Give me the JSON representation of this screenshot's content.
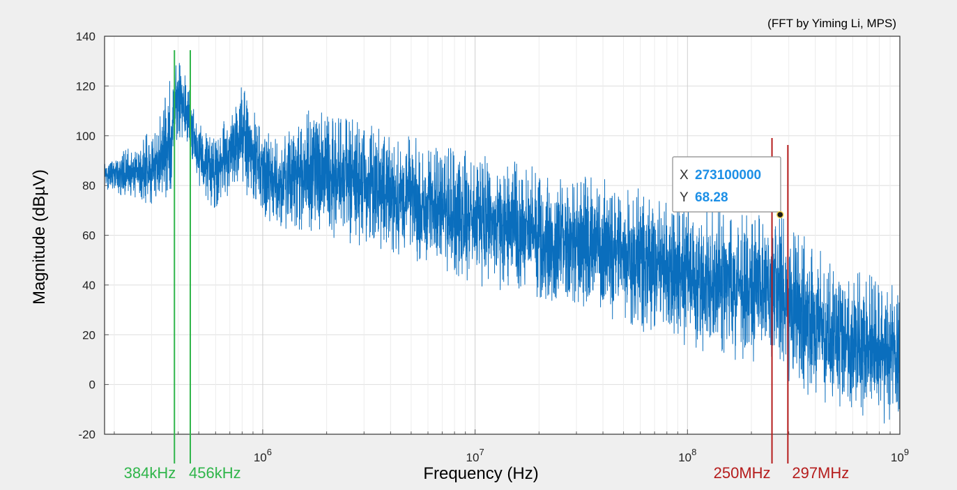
{
  "chart_data": {
    "type": "line",
    "title": "",
    "credit": "(FFT by Yiming Li, MPS)",
    "xlabel": "Frequency (Hz)",
    "ylabel": "Magnitude (dBµV)",
    "x_scale": "log",
    "xlim": [
      180000,
      1000000000
    ],
    "ylim": [
      -20,
      140
    ],
    "y_ticks": [
      -20,
      0,
      20,
      40,
      60,
      80,
      100,
      120,
      140
    ],
    "x_ticks": [
      {
        "value": 1000000,
        "base": "10",
        "exp": "6"
      },
      {
        "value": 10000000,
        "base": "10",
        "exp": "7"
      },
      {
        "value": 100000000,
        "base": "10",
        "exp": "8"
      },
      {
        "value": 1000000000,
        "base": "10",
        "exp": "9"
      }
    ],
    "grid": true,
    "series": [
      {
        "color": "#0a6ebd",
        "envelope": [
          {
            "x": 180000,
            "lo": 78,
            "hi": 92
          },
          {
            "x": 250000,
            "lo": 74,
            "hi": 96
          },
          {
            "x": 320000,
            "lo": 72,
            "hi": 105
          },
          {
            "x": 370000,
            "lo": 74,
            "hi": 124
          },
          {
            "x": 400000,
            "lo": 98,
            "hi": 131
          },
          {
            "x": 440000,
            "lo": 95,
            "hi": 128
          },
          {
            "x": 500000,
            "lo": 80,
            "hi": 105
          },
          {
            "x": 600000,
            "lo": 68,
            "hi": 100
          },
          {
            "x": 700000,
            "lo": 75,
            "hi": 110
          },
          {
            "x": 820000,
            "lo": 75,
            "hi": 123
          },
          {
            "x": 950000,
            "lo": 70,
            "hi": 105
          },
          {
            "x": 1200000,
            "lo": 60,
            "hi": 98
          },
          {
            "x": 1600000,
            "lo": 62,
            "hi": 111
          },
          {
            "x": 2000000,
            "lo": 60,
            "hi": 111
          },
          {
            "x": 3000000,
            "lo": 55,
            "hi": 106
          },
          {
            "x": 5000000,
            "lo": 50,
            "hi": 100
          },
          {
            "x": 10000000,
            "lo": 40,
            "hi": 93
          },
          {
            "x": 30000000,
            "lo": 30,
            "hi": 85
          },
          {
            "x": 100000000,
            "lo": 15,
            "hi": 76
          },
          {
            "x": 200000000,
            "lo": 8,
            "hi": 68
          },
          {
            "x": 273100000,
            "lo": 4,
            "hi": 68
          },
          {
            "x": 350000000,
            "lo": -4,
            "hi": 60
          },
          {
            "x": 500000000,
            "lo": -10,
            "hi": 48
          },
          {
            "x": 1000000000,
            "lo": -18,
            "hi": 42
          }
        ]
      }
    ],
    "markers": [
      {
        "x": 384000,
        "label": "384kHz",
        "color": "#2fb54a"
      },
      {
        "x": 456000,
        "label": "456kHz",
        "color": "#2fb54a"
      },
      {
        "x": 250000000,
        "label": "250MHz",
        "color": "#b51c1c"
      },
      {
        "x": 297000000,
        "label": "297MHz",
        "color": "#b51c1c"
      }
    ],
    "datatip": {
      "x": 273100000,
      "y": 68.28,
      "x_text": "273100000",
      "y_text": "68.28",
      "x_key": "X",
      "y_key": "Y"
    }
  }
}
